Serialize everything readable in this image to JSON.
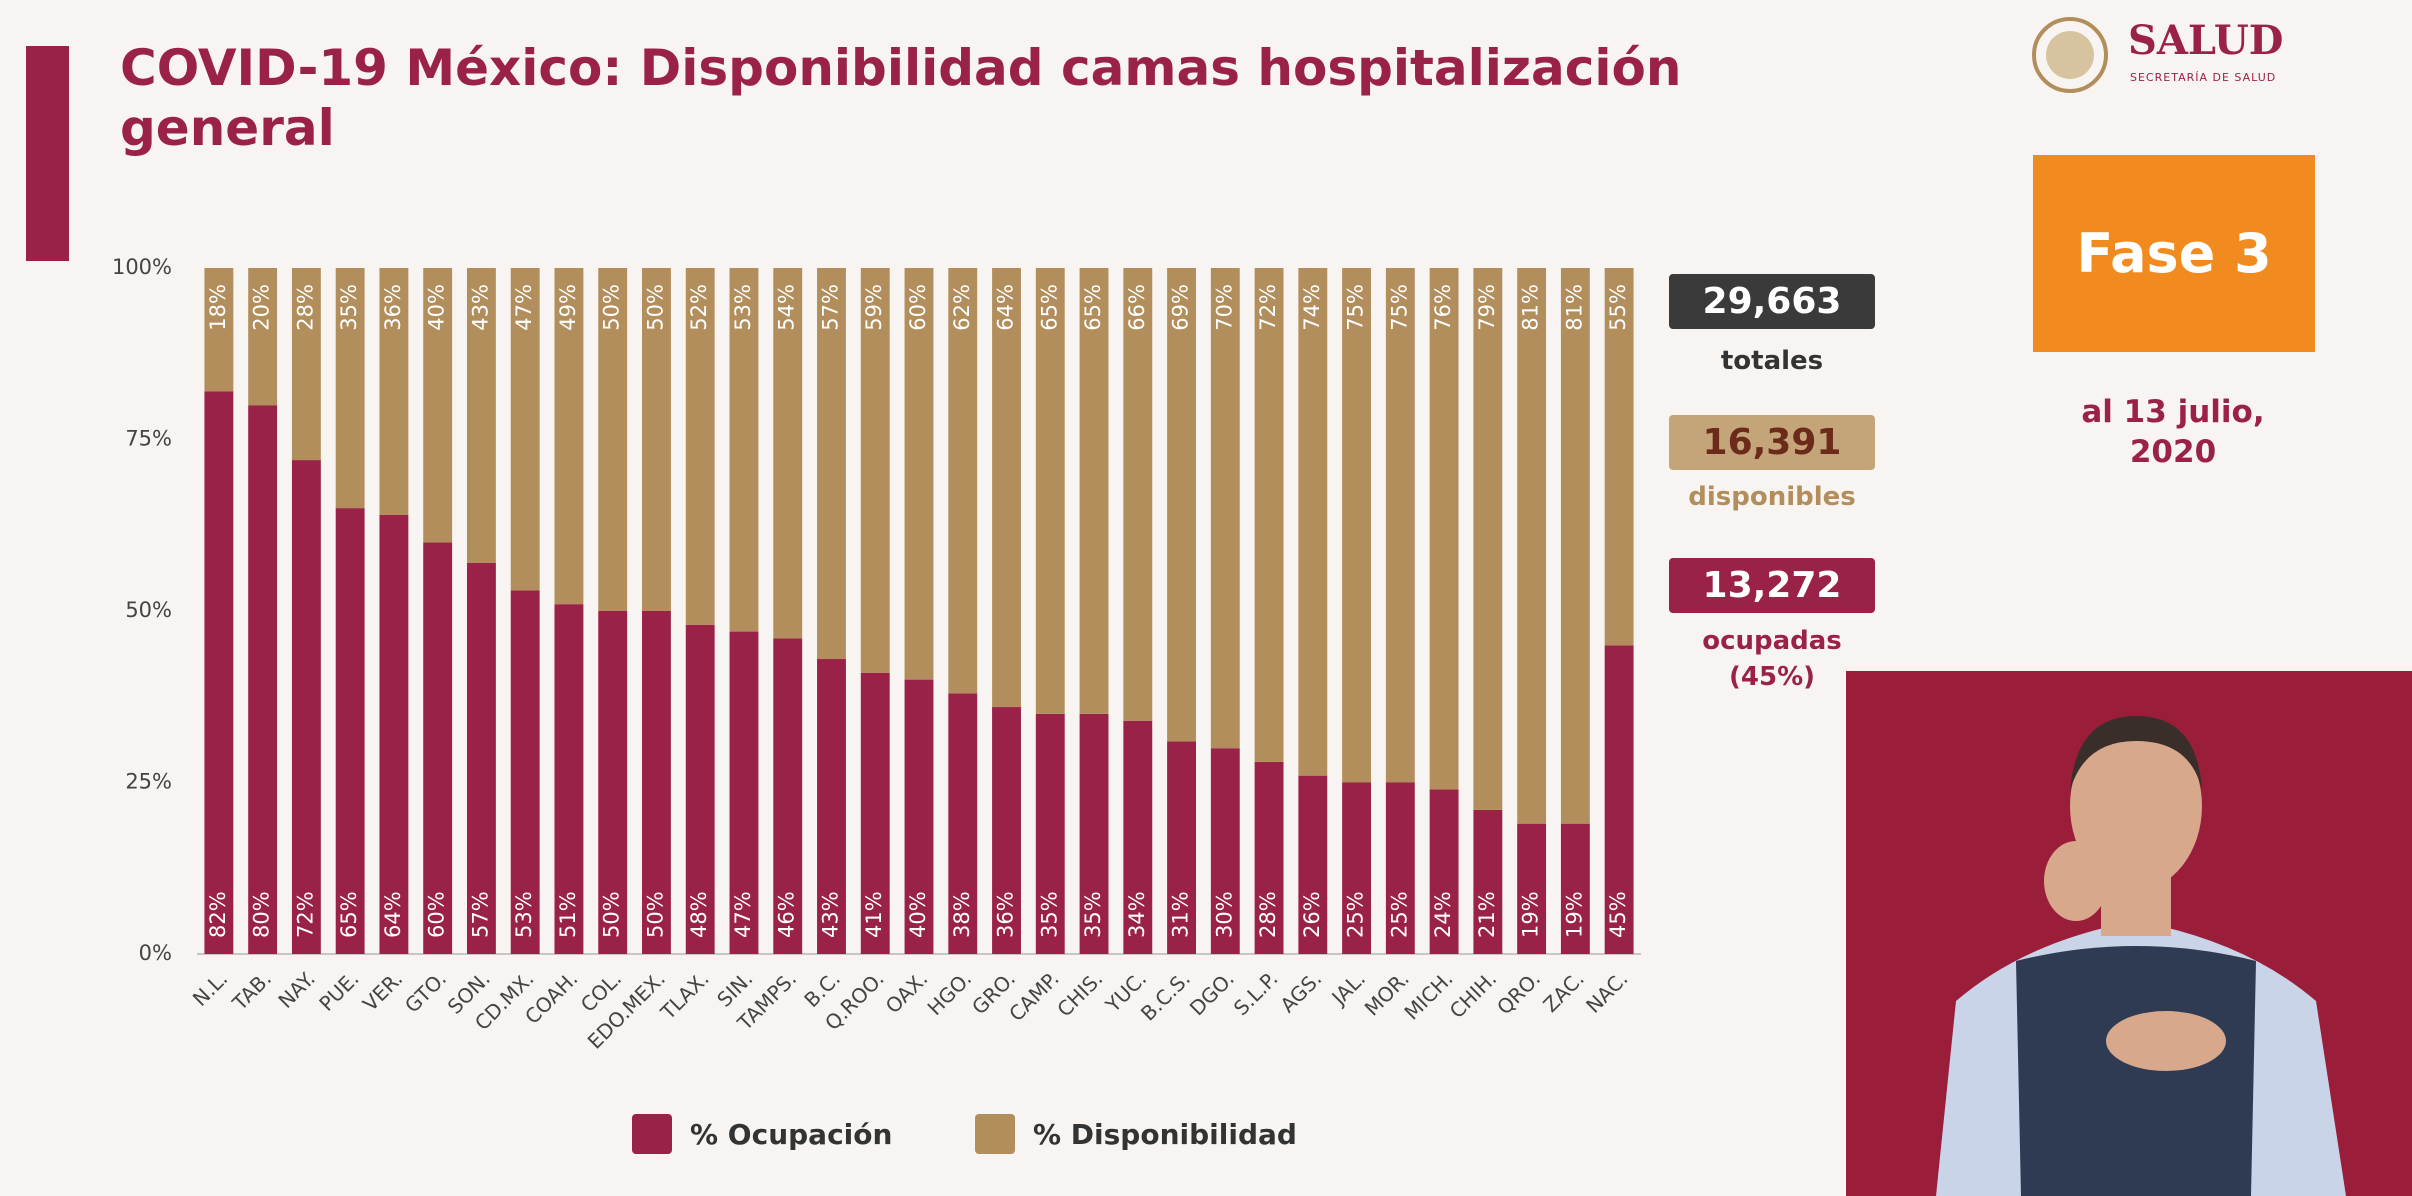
{
  "chart_data": {
    "type": "stacked_bar",
    "title": "COVID-19 México: Disponibilidad camas hospitalización general",
    "categories": [
      "N.L.",
      "TAB.",
      "NAY.",
      "PUE.",
      "VER.",
      "GTO.",
      "SON.",
      "CD.MX.",
      "COAH.",
      "COL.",
      "EDO.MEX.",
      "TLAX.",
      "SIN.",
      "TAMPS.",
      "B.C.",
      "Q.ROO.",
      "OAX.",
      "HGO.",
      "GRO.",
      "CAMP.",
      "CHIS.",
      "YUC.",
      "B.C.S.",
      "DGO.",
      "S.L.P.",
      "AGS.",
      "JAL.",
      "MOR.",
      "MICH.",
      "CHIH.",
      "QRO.",
      "ZAC.",
      "NAC."
    ],
    "series": [
      {
        "name": "% Ocupación",
        "color": "#9b2247",
        "values": [
          82,
          80,
          72,
          65,
          64,
          60,
          57,
          53,
          51,
          50,
          50,
          48,
          47,
          46,
          43,
          41,
          40,
          38,
          36,
          35,
          35,
          34,
          31,
          30,
          28,
          26,
          25,
          25,
          24,
          21,
          19,
          19,
          45
        ],
        "value_labels": [
          "82%",
          "80%",
          "72%",
          "65%",
          "64%",
          "60%",
          "57%",
          "53%",
          "51%",
          "50%",
          "50%",
          "48%",
          "47%",
          "46%",
          "43%",
          "41%",
          "40%",
          "38%",
          "36%",
          "35%",
          "35%",
          "34%",
          "31%",
          "30%",
          "28%",
          "26%",
          "25%",
          "25%",
          "24%",
          "21%",
          "19%",
          "19%",
          "45%"
        ]
      },
      {
        "name": "% Disponibilidad",
        "color": "#b38e5d",
        "values": [
          18,
          20,
          28,
          35,
          36,
          40,
          43,
          47,
          49,
          50,
          50,
          52,
          53,
          54,
          57,
          59,
          60,
          62,
          64,
          65,
          65,
          66,
          69,
          70,
          72,
          74,
          75,
          75,
          76,
          79,
          81,
          81,
          55
        ],
        "value_labels": [
          "18%",
          "20%",
          "28%",
          "35%",
          "36%",
          "40%",
          "43%",
          "47%",
          "49%",
          "50%",
          "50%",
          "52%",
          "53%",
          "54%",
          "57%",
          "59%",
          "60%",
          "62%",
          "64%",
          "65%",
          "65%",
          "66%",
          "69%",
          "70%",
          "72%",
          "74%",
          "75%",
          "75%",
          "76%",
          "79%",
          "81%",
          "81%",
          "55%"
        ]
      }
    ],
    "ylim": [
      0,
      100
    ],
    "yticks": [
      {
        "value": 0,
        "label": "0%"
      },
      {
        "value": 25,
        "label": "25%"
      },
      {
        "value": 50,
        "label": "50%"
      },
      {
        "value": 75,
        "label": "75%"
      },
      {
        "value": 100,
        "label": "100%"
      }
    ],
    "grid": false,
    "legend": "bottom"
  },
  "header": {
    "logo": "SALUD",
    "logo_sub": "SECRETARÍA DE SALUD"
  },
  "phase": "Fase 3",
  "date": "al 13 julio, 2020",
  "summary": [
    {
      "value": "29,663",
      "label": "totales"
    },
    {
      "value": "16,391",
      "label": "disponibles"
    },
    {
      "value": "13,272",
      "label": "ocupadas",
      "note": "(45%)"
    }
  ]
}
